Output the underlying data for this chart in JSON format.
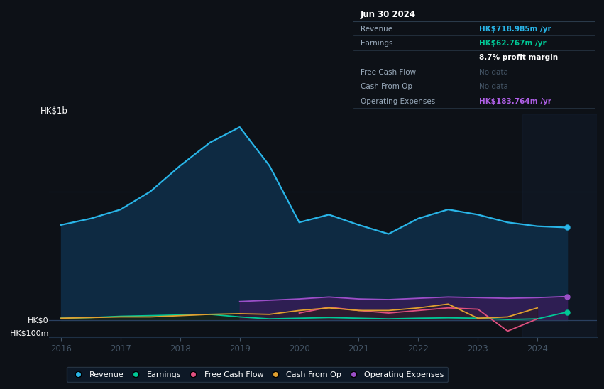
{
  "background_color": "#0d1117",
  "plot_bg_color": "#0d1117",
  "panel_bg": "#0d1117",
  "infobox_bg": "#131c27",
  "years": [
    2016.0,
    2016.5,
    2017.0,
    2017.5,
    2018.0,
    2018.5,
    2019.0,
    2019.5,
    2020.0,
    2020.5,
    2021.0,
    2021.5,
    2022.0,
    2022.5,
    2023.0,
    2023.5,
    2024.0,
    2024.5
  ],
  "revenue": [
    740,
    790,
    860,
    1000,
    1200,
    1380,
    1500,
    1200,
    760,
    820,
    740,
    670,
    790,
    860,
    820,
    760,
    730,
    720
  ],
  "earnings": [
    15,
    20,
    30,
    35,
    40,
    45,
    25,
    10,
    15,
    20,
    15,
    10,
    15,
    18,
    15,
    5,
    10,
    63
  ],
  "free_cash_flow": [
    null,
    null,
    null,
    null,
    null,
    null,
    null,
    null,
    55,
    100,
    75,
    55,
    75,
    95,
    85,
    -85,
    10,
    null
  ],
  "cash_from_op": [
    15,
    20,
    25,
    25,
    35,
    45,
    50,
    45,
    75,
    95,
    75,
    75,
    95,
    125,
    15,
    25,
    95,
    null
  ],
  "operating_expenses": [
    null,
    null,
    null,
    null,
    null,
    null,
    145,
    155,
    165,
    180,
    165,
    160,
    170,
    180,
    175,
    170,
    175,
    184
  ],
  "colors": {
    "revenue": "#29b5e8",
    "earnings": "#00c896",
    "free_cash_flow": "#e05080",
    "cash_from_op": "#e0a030",
    "operating_expenses": "#9b4fc8",
    "revenue_fill": "#0e2a42",
    "earnings_fill": "#0a2a20",
    "op_exp_fill": "#3a1a5a",
    "fcf_fill": "#3a1a2a",
    "cfop_fill": "#2a1a0a"
  },
  "ylabel_top": "HK$1b",
  "ylabel_zero": "HK$0",
  "ylabel_bottom": "-HK$100m",
  "ylim": [
    -130,
    1600
  ],
  "xlim": [
    2015.8,
    2025.0
  ],
  "xticks": [
    2016,
    2017,
    2018,
    2019,
    2020,
    2021,
    2022,
    2023,
    2024
  ],
  "zero_y": 0,
  "gridline_y": [
    1000
  ],
  "legend_items": [
    "Revenue",
    "Earnings",
    "Free Cash Flow",
    "Cash From Op",
    "Operating Expenses"
  ],
  "legend_colors": [
    "#29b5e8",
    "#00c896",
    "#e05080",
    "#e0a030",
    "#9b4fc8"
  ],
  "shade_start": 2023.75,
  "shade_end": 2025.0
}
